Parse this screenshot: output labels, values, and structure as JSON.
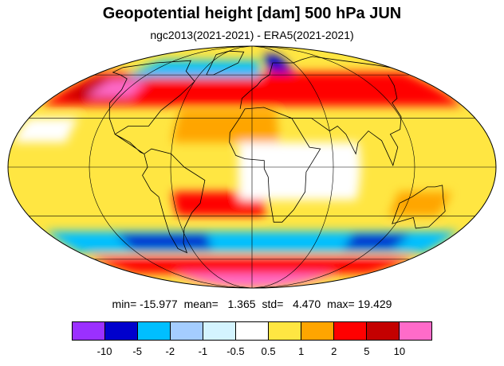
{
  "title": "Geopotential height [dam] 500 hPa JUN",
  "subtitle": "ngc2013(2021-2021) - ERA5(2021-2021)",
  "stats": {
    "min": "min= -15.977",
    "mean": "mean=   1.365",
    "std": "std=   4.470",
    "max": "max= 19.429"
  },
  "colorbar": {
    "colors": [
      "#9b30ff",
      "#0000cd",
      "#00bfff",
      "#a4cdff",
      "#d4f4ff",
      "#ffffff",
      "#ffe642",
      "#ffa500",
      "#ff0000",
      "#c40000",
      "#ff6bc9"
    ],
    "labels": [
      "-10",
      "-5",
      "-2",
      "-1",
      "-0.5",
      "0.5",
      "1",
      "2",
      "5",
      "10"
    ]
  },
  "map": {
    "projection": "mollweide",
    "ocean_color": "#ffe642",
    "land_outline_color": "#000000",
    "anomaly_regions": [
      {
        "color": "#ff0000",
        "lon": [
          -180,
          180
        ],
        "lat": [
          38,
          62
        ]
      },
      {
        "color": "#c40000",
        "lon": [
          -170,
          -110
        ],
        "lat": [
          42,
          58
        ]
      },
      {
        "color": "#0000cd",
        "lon": [
          20,
          50
        ],
        "lat": [
          62,
          78
        ]
      },
      {
        "color": "#00bfff",
        "lon": [
          -140,
          10
        ],
        "lat": [
          58,
          72
        ]
      },
      {
        "color": "#ff6bc9",
        "lon": [
          -150,
          -110
        ],
        "lat": [
          44,
          56
        ]
      },
      {
        "color": "#ffffff",
        "lon": [
          -180,
          -140
        ],
        "lat": [
          15,
          30
        ]
      },
      {
        "color": "#ffa500",
        "lon": [
          -60,
          20
        ],
        "lat": [
          15,
          35
        ]
      },
      {
        "color": "#ff0000",
        "lon": [
          -60,
          10
        ],
        "lat": [
          -30,
          -15
        ]
      },
      {
        "color": "#ffffff",
        "lon": [
          -10,
          80
        ],
        "lat": [
          -20,
          15
        ]
      },
      {
        "color": "#00bfff",
        "lon": [
          -180,
          180
        ],
        "lat": [
          -55,
          -40
        ]
      },
      {
        "color": "#0000cd",
        "lon": [
          -120,
          -40
        ],
        "lat": [
          -52,
          -42
        ]
      },
      {
        "color": "#0000cd",
        "lon": [
          90,
          140
        ],
        "lat": [
          -52,
          -42
        ]
      },
      {
        "color": "#ff0000",
        "lon": [
          -180,
          180
        ],
        "lat": [
          -72,
          -58
        ]
      },
      {
        "color": "#ff6bc9",
        "lon": [
          -120,
          130
        ],
        "lat": [
          -90,
          -72
        ]
      },
      {
        "color": "#ffa500",
        "lon": [
          110,
          150
        ],
        "lat": [
          -30,
          -15
        ]
      }
    ]
  }
}
